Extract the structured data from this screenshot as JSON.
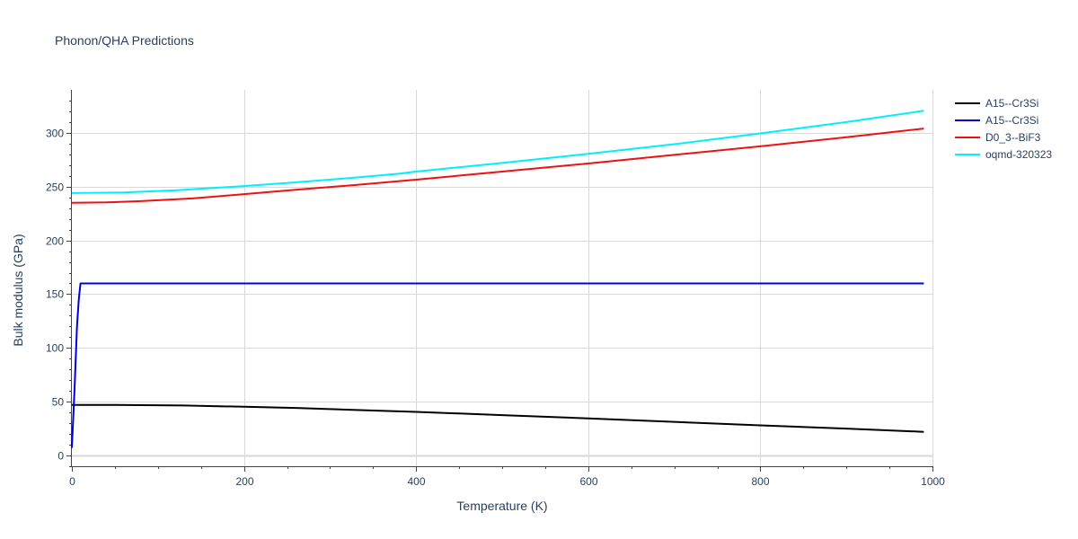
{
  "chart_data": {
    "type": "line",
    "title": "Phonon/QHA Predictions",
    "xlabel": "Temperature (K)",
    "ylabel": "Bulk modulus (GPa)",
    "xlim": [
      0,
      1000
    ],
    "ylim": [
      -10,
      340
    ],
    "x_ticks": [
      0,
      200,
      400,
      600,
      800,
      1000
    ],
    "y_ticks": [
      0,
      50,
      100,
      150,
      200,
      250,
      300
    ],
    "x_minor_ticks": [
      50,
      100,
      150,
      250,
      300,
      350,
      450,
      500,
      550,
      650,
      700,
      750,
      850,
      900,
      950
    ],
    "y_minor_ticks": [
      -10,
      10,
      20,
      30,
      40,
      60,
      70,
      80,
      90,
      110,
      120,
      130,
      140,
      160,
      170,
      180,
      190,
      210,
      220,
      230,
      240,
      260,
      270,
      280,
      290,
      310,
      320,
      330
    ],
    "grid": true,
    "legend_position": "top-right",
    "series": [
      {
        "name": "A15--Cr3Si",
        "color": "#000000",
        "x": [
          0,
          50,
          130,
          200,
          260,
          330,
          400,
          500,
          600,
          700,
          800,
          900,
          990
        ],
        "y": [
          47,
          47,
          46.5,
          45.3,
          44.2,
          42.3,
          40.5,
          37.5,
          34.5,
          31.3,
          28,
          25,
          22
        ]
      },
      {
        "name": "A15--Cr3Si",
        "color": "#0000dd",
        "x": [
          0,
          3,
          6,
          8,
          10,
          20,
          50,
          200,
          400,
          600,
          800,
          990
        ],
        "y": [
          7,
          60,
          120,
          145,
          160,
          160,
          160,
          160,
          160,
          160,
          160,
          160
        ]
      },
      {
        "name": "D0_3--BiF3",
        "color": "#ee1111",
        "x": [
          0,
          40,
          80,
          140,
          200,
          260,
          330,
          400,
          500,
          600,
          700,
          800,
          900,
          990
        ],
        "y": [
          235,
          235.3,
          236.5,
          239,
          243,
          247,
          251.5,
          256.5,
          264,
          271.5,
          279.5,
          287.5,
          296,
          304
        ]
      },
      {
        "name": "oqmd-320323",
        "color": "#00eeff",
        "x": [
          0,
          60,
          120,
          200,
          260,
          330,
          380,
          400,
          500,
          600,
          700,
          800,
          900,
          990
        ],
        "y": [
          244,
          244.5,
          246.5,
          250.5,
          254,
          258.5,
          262,
          264,
          272,
          280.5,
          289.5,
          299.5,
          310,
          320.5
        ]
      }
    ]
  }
}
